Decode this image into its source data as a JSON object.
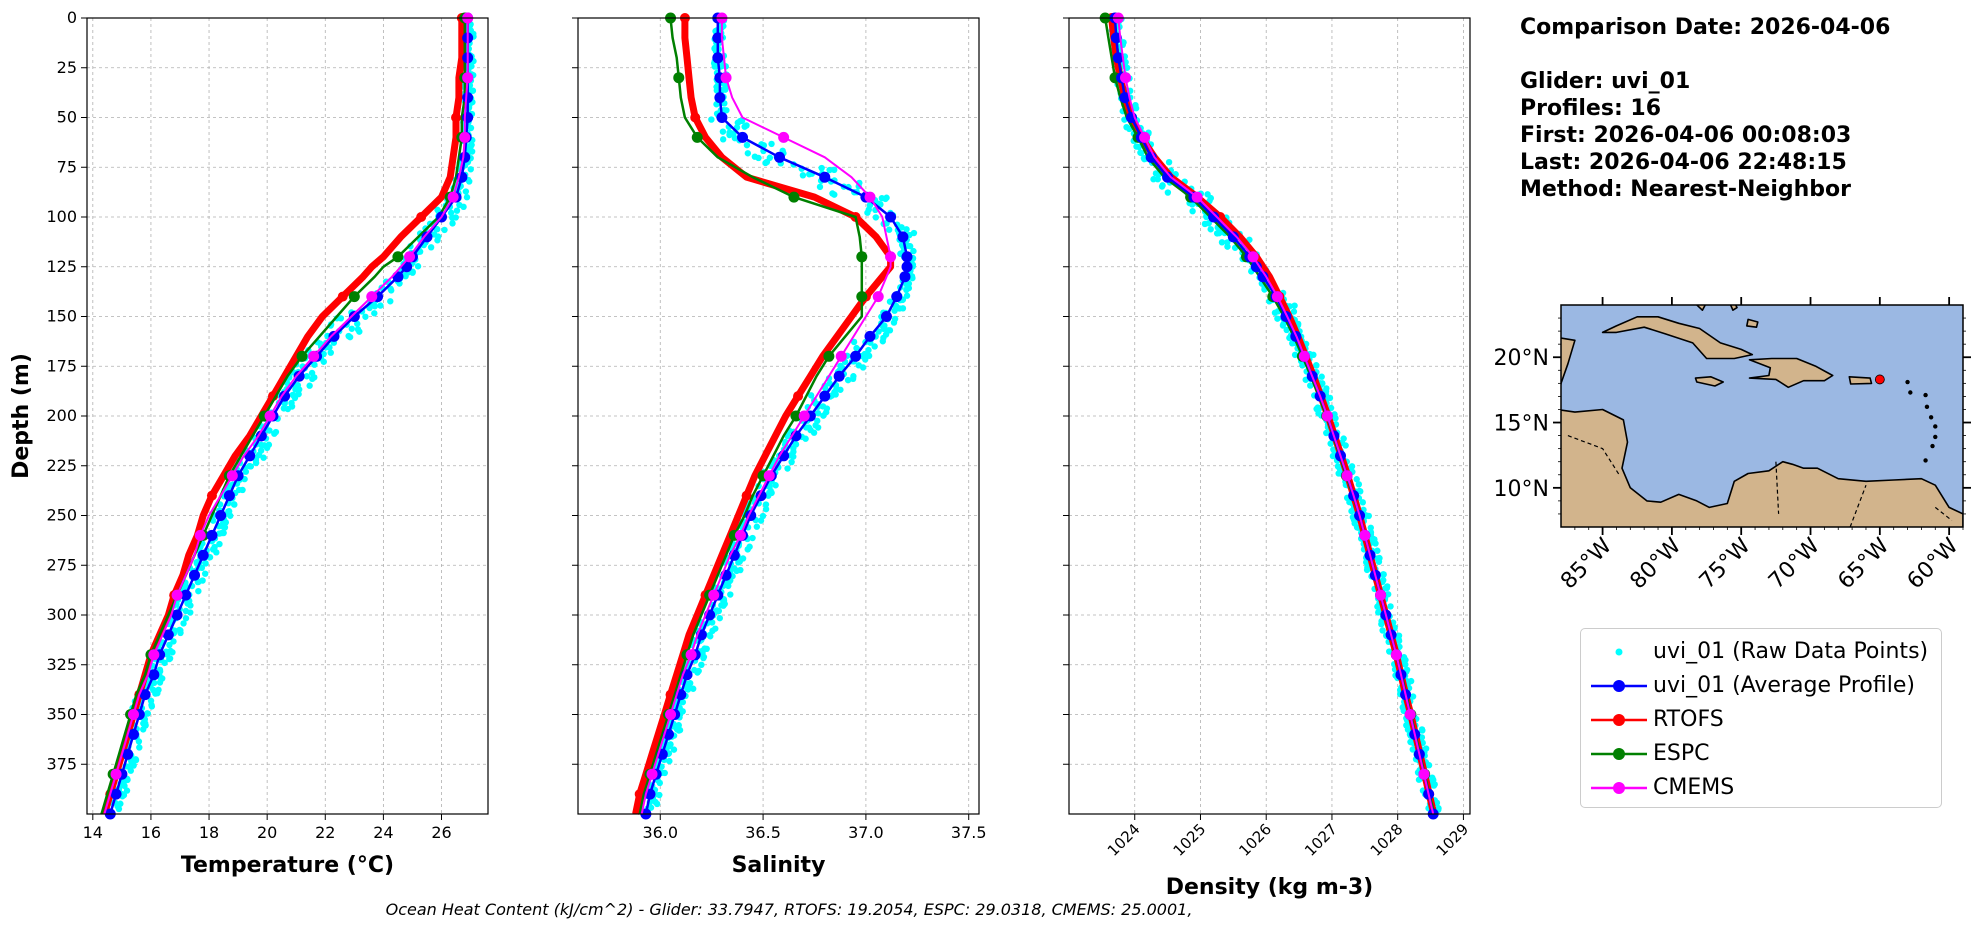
{
  "info": {
    "comparison_date": "Comparison Date: 2026-04-06",
    "glider": "Glider: uvi_01",
    "profiles": "Profiles: 16",
    "first": "First: 2026-04-06 00:08:03",
    "last": "Last: 2026-04-06 22:48:15",
    "method": "Method: Nearest-Neighbor"
  },
  "footer": "Ocean Heat Content (kJ/cm^2) - Glider: 33.7947,  RTOFS: 19.2054,  ESPC: 29.0318,  CMEMS: 25.0001,",
  "colors": {
    "raw": "#00ffff",
    "average": "#0000ff",
    "rtofs": "#ff0000",
    "espc": "#008000",
    "cmems": "#ff00ff",
    "ocean": "#9bb8e3",
    "land": "#d2b48c",
    "grid": "#b0b0b0"
  },
  "legend": [
    {
      "key": "raw",
      "label": "uvi_01 (Raw Data Points)",
      "style": "dot"
    },
    {
      "key": "average",
      "label": "uvi_01 (Average Profile)",
      "style": "line"
    },
    {
      "key": "rtofs",
      "label": "RTOFS",
      "style": "line"
    },
    {
      "key": "espc",
      "label": "ESPC",
      "style": "line"
    },
    {
      "key": "cmems",
      "label": "CMEMS",
      "style": "line"
    }
  ],
  "map": {
    "lat_ticks": [
      "20°N",
      "15°N",
      "10°N"
    ],
    "lon_ticks": [
      "85°W",
      "80°W",
      "75°W",
      "70°W",
      "65°W",
      "60°W"
    ],
    "lat_values": [
      20,
      15,
      10
    ],
    "lon_values": [
      -85,
      -80,
      -75,
      -70,
      -65,
      -60
    ],
    "extent": {
      "lon_min": -88,
      "lon_max": -59,
      "lat_min": 7,
      "lat_max": 24
    },
    "glider_location": {
      "lon": -65,
      "lat": 18.3
    }
  },
  "chart_data": [
    {
      "type": "line",
      "title": "",
      "xlabel": "Temperature (°C)",
      "ylabel": "Depth (m)",
      "xlim": [
        13.8,
        27.6
      ],
      "ylim": [
        400,
        0
      ],
      "xticks": [
        14,
        16,
        18,
        20,
        22,
        24,
        26
      ],
      "yticks": [
        0,
        25,
        50,
        75,
        100,
        125,
        150,
        175,
        200,
        225,
        250,
        275,
        300,
        325,
        350,
        375
      ],
      "depths": [
        0,
        10,
        20,
        30,
        40,
        50,
        60,
        70,
        80,
        90,
        100,
        110,
        120,
        125,
        130,
        140,
        150,
        160,
        170,
        180,
        190,
        200,
        210,
        220,
        230,
        240,
        250,
        260,
        270,
        280,
        290,
        300,
        310,
        320,
        330,
        340,
        350,
        360,
        370,
        380,
        390,
        400
      ],
      "series": [
        {
          "key": "average",
          "name": "uvi_01 (Average Profile)",
          "values": [
            26.9,
            26.9,
            26.9,
            26.9,
            26.9,
            26.9,
            26.85,
            26.8,
            26.7,
            26.5,
            26.0,
            25.5,
            25.0,
            24.8,
            24.5,
            23.8,
            23.0,
            22.3,
            21.7,
            21.1,
            20.6,
            20.2,
            19.8,
            19.4,
            19.0,
            18.7,
            18.4,
            18.1,
            17.8,
            17.5,
            17.2,
            16.9,
            16.6,
            16.3,
            16.1,
            15.8,
            15.6,
            15.4,
            15.2,
            15.0,
            14.8,
            14.6
          ]
        },
        {
          "key": "rtofs",
          "name": "RTOFS",
          "values": [
            26.7,
            26.7,
            26.7,
            26.6,
            26.6,
            26.5,
            26.5,
            26.4,
            26.3,
            26.0,
            25.3,
            24.6,
            24.0,
            23.6,
            23.3,
            22.6,
            21.9,
            21.4,
            21.0,
            20.6,
            20.2,
            19.8,
            19.4,
            18.9,
            18.5,
            18.1,
            17.8,
            17.6,
            17.3,
            17.1,
            16.8,
            16.6,
            16.3,
            16.0,
            15.8,
            15.6,
            15.4,
            15.2,
            15.0,
            14.8,
            14.6,
            14.4
          ]
        },
        {
          "key": "espc",
          "name": "ESPC",
          "values": [
            26.8,
            26.8,
            26.8,
            26.8,
            26.8,
            26.7,
            26.7,
            26.6,
            26.5,
            26.3,
            25.9,
            25.2,
            24.5,
            24.0,
            23.7,
            23.0,
            22.4,
            21.8,
            21.2,
            20.7,
            20.3,
            19.9,
            19.5,
            19.1,
            18.7,
            18.4,
            18.1,
            17.8,
            17.5,
            17.2,
            16.9,
            16.6,
            16.3,
            16.0,
            15.8,
            15.5,
            15.3,
            15.1,
            14.9,
            14.7,
            14.5,
            14.3
          ]
        },
        {
          "key": "cmems",
          "name": "CMEMS",
          "values": [
            26.9,
            26.9,
            26.9,
            26.9,
            26.85,
            26.8,
            26.8,
            26.75,
            26.6,
            26.4,
            26.0,
            25.4,
            24.9,
            24.6,
            24.3,
            23.6,
            22.9,
            22.2,
            21.6,
            21.0,
            20.5,
            20.1,
            19.7,
            19.2,
            18.8,
            18.4,
            18.0,
            17.7,
            17.5,
            17.2,
            16.9,
            16.7,
            16.4,
            16.1,
            15.9,
            15.6,
            15.4,
            15.2,
            15.0,
            14.8,
            14.6,
            14.4
          ]
        }
      ]
    },
    {
      "type": "line",
      "title": "",
      "xlabel": "Salinity",
      "ylabel": "",
      "xlim": [
        35.6,
        37.55
      ],
      "ylim": [
        400,
        0
      ],
      "xticks": [
        36.0,
        36.5,
        37.0,
        37.5
      ],
      "yticks": [
        0,
        25,
        50,
        75,
        100,
        125,
        150,
        175,
        200,
        225,
        250,
        275,
        300,
        325,
        350,
        375
      ],
      "depths": [
        0,
        10,
        20,
        30,
        40,
        50,
        60,
        70,
        80,
        90,
        100,
        110,
        120,
        125,
        130,
        140,
        150,
        160,
        170,
        180,
        190,
        200,
        210,
        220,
        230,
        240,
        250,
        260,
        270,
        280,
        290,
        300,
        310,
        320,
        330,
        340,
        350,
        360,
        370,
        380,
        390,
        400
      ],
      "series": [
        {
          "key": "average",
          "name": "uvi_01 (Average Profile)",
          "values": [
            36.28,
            36.28,
            36.28,
            36.29,
            36.29,
            36.3,
            36.4,
            36.58,
            36.8,
            37.0,
            37.12,
            37.18,
            37.2,
            37.2,
            37.19,
            37.15,
            37.1,
            37.02,
            36.95,
            36.87,
            36.8,
            36.73,
            36.66,
            36.6,
            36.54,
            36.49,
            36.44,
            36.4,
            36.36,
            36.32,
            36.28,
            36.24,
            36.2,
            36.17,
            36.13,
            36.1,
            36.07,
            36.04,
            36.01,
            35.98,
            35.95,
            35.93
          ]
        },
        {
          "key": "rtofs",
          "name": "RTOFS",
          "values": [
            36.12,
            36.12,
            36.13,
            36.14,
            36.15,
            36.17,
            36.22,
            36.3,
            36.42,
            36.75,
            36.95,
            37.05,
            37.12,
            37.12,
            37.08,
            37.0,
            36.93,
            36.86,
            36.79,
            36.73,
            36.67,
            36.61,
            36.56,
            36.51,
            36.46,
            36.42,
            36.38,
            36.34,
            36.3,
            36.26,
            36.22,
            36.18,
            36.14,
            36.11,
            36.08,
            36.05,
            36.02,
            35.99,
            35.96,
            35.93,
            35.9,
            35.88
          ]
        },
        {
          "key": "espc",
          "name": "ESPC",
          "values": [
            36.05,
            36.06,
            36.08,
            36.09,
            36.1,
            36.12,
            36.18,
            36.28,
            36.45,
            36.65,
            36.95,
            36.97,
            36.98,
            36.98,
            36.98,
            36.98,
            36.98,
            36.9,
            36.82,
            36.76,
            36.71,
            36.66,
            36.6,
            36.55,
            36.5,
            36.45,
            36.41,
            36.36,
            36.32,
            36.28,
            36.24,
            36.2,
            36.16,
            36.13,
            36.1,
            36.07,
            36.04,
            36.01,
            35.98,
            35.95,
            35.92,
            35.9
          ]
        },
        {
          "key": "cmems",
          "name": "CMEMS",
          "values": [
            36.3,
            36.3,
            36.31,
            36.32,
            36.35,
            36.4,
            36.6,
            36.8,
            36.93,
            37.02,
            37.08,
            37.1,
            37.12,
            37.12,
            37.1,
            37.06,
            37.0,
            36.94,
            36.88,
            36.82,
            36.76,
            36.7,
            36.64,
            36.58,
            36.53,
            36.48,
            36.43,
            36.39,
            36.34,
            36.3,
            36.26,
            36.22,
            36.18,
            36.15,
            36.11,
            36.08,
            36.05,
            36.02,
            35.99,
            35.96,
            35.93,
            35.91
          ]
        }
      ]
    },
    {
      "type": "line",
      "title": "",
      "xlabel": "Density (kg m-3)",
      "ylabel": "",
      "xlim": [
        1023.0,
        1029.1
      ],
      "ylim": [
        400,
        0
      ],
      "xticks": [
        1024,
        1025,
        1026,
        1027,
        1028,
        1029
      ],
      "yticks": [
        0,
        25,
        50,
        75,
        100,
        125,
        150,
        175,
        200,
        225,
        250,
        275,
        300,
        325,
        350,
        375
      ],
      "depths": [
        0,
        10,
        20,
        30,
        40,
        50,
        60,
        70,
        80,
        90,
        100,
        110,
        120,
        125,
        130,
        140,
        150,
        160,
        170,
        180,
        190,
        200,
        210,
        220,
        230,
        240,
        250,
        260,
        270,
        280,
        290,
        300,
        310,
        320,
        330,
        340,
        350,
        360,
        370,
        380,
        390,
        400
      ],
      "series": [
        {
          "key": "average",
          "name": "uvi_01 (Average Profile)",
          "values": [
            1023.7,
            1023.72,
            1023.75,
            1023.8,
            1023.85,
            1023.95,
            1024.1,
            1024.25,
            1024.5,
            1024.9,
            1025.2,
            1025.5,
            1025.75,
            1025.85,
            1025.95,
            1026.15,
            1026.3,
            1026.45,
            1026.58,
            1026.7,
            1026.82,
            1026.93,
            1027.03,
            1027.13,
            1027.23,
            1027.33,
            1027.42,
            1027.5,
            1027.58,
            1027.66,
            1027.74,
            1027.82,
            1027.9,
            1027.98,
            1028.05,
            1028.12,
            1028.19,
            1028.26,
            1028.33,
            1028.4,
            1028.47,
            1028.54
          ]
        },
        {
          "key": "rtofs",
          "name": "RTOFS",
          "values": [
            1023.65,
            1023.68,
            1023.72,
            1023.78,
            1023.85,
            1023.95,
            1024.1,
            1024.3,
            1024.55,
            1024.95,
            1025.3,
            1025.6,
            1025.85,
            1025.95,
            1026.05,
            1026.2,
            1026.35,
            1026.48,
            1026.6,
            1026.72,
            1026.83,
            1026.94,
            1027.04,
            1027.14,
            1027.24,
            1027.33,
            1027.42,
            1027.5,
            1027.58,
            1027.66,
            1027.74,
            1027.82,
            1027.9,
            1027.98,
            1028.05,
            1028.12,
            1028.2,
            1028.27,
            1028.34,
            1028.41,
            1028.48,
            1028.55
          ]
        },
        {
          "key": "espc",
          "name": "ESPC",
          "values": [
            1023.55,
            1023.6,
            1023.65,
            1023.7,
            1023.78,
            1023.88,
            1024.05,
            1024.2,
            1024.45,
            1024.85,
            1025.15,
            1025.45,
            1025.7,
            1025.8,
            1025.9,
            1026.1,
            1026.27,
            1026.42,
            1026.55,
            1026.68,
            1026.8,
            1026.92,
            1027.02,
            1027.12,
            1027.22,
            1027.32,
            1027.42,
            1027.5,
            1027.58,
            1027.66,
            1027.74,
            1027.82,
            1027.9,
            1027.98,
            1028.06,
            1028.13,
            1028.2,
            1028.27,
            1028.34,
            1028.41,
            1028.48,
            1028.56
          ]
        },
        {
          "key": "cmems",
          "name": "CMEMS",
          "values": [
            1023.75,
            1023.78,
            1023.82,
            1023.86,
            1023.92,
            1024.0,
            1024.15,
            1024.3,
            1024.55,
            1024.95,
            1025.25,
            1025.55,
            1025.8,
            1025.9,
            1026.0,
            1026.17,
            1026.32,
            1026.46,
            1026.58,
            1026.7,
            1026.82,
            1026.93,
            1027.03,
            1027.13,
            1027.23,
            1027.33,
            1027.42,
            1027.5,
            1027.58,
            1027.66,
            1027.74,
            1027.82,
            1027.9,
            1027.98,
            1028.05,
            1028.12,
            1028.19,
            1028.26,
            1028.33,
            1028.4,
            1028.47,
            1028.54
          ]
        }
      ]
    }
  ]
}
